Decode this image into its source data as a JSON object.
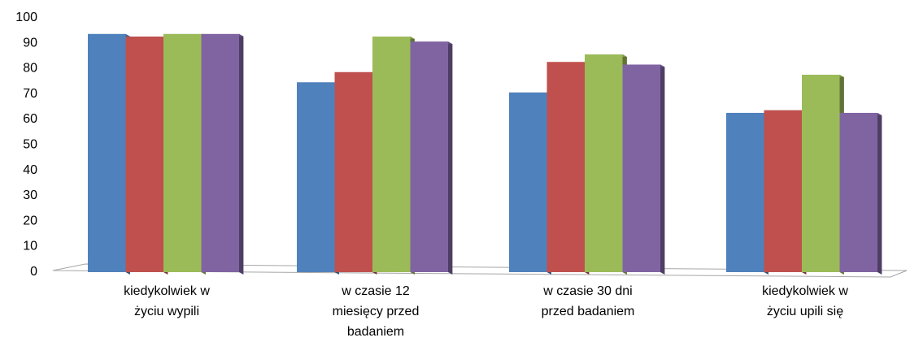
{
  "chart_data": {
    "type": "bar",
    "title": "",
    "xlabel": "",
    "ylabel": "",
    "ylim": [
      0,
      100
    ],
    "yticks": [
      0,
      10,
      20,
      30,
      40,
      50,
      60,
      70,
      80,
      90,
      100
    ],
    "grid": false,
    "legend": "none",
    "style": "3d-columns",
    "categories": [
      [
        "kiedykolwiek w",
        "życiu wypili"
      ],
      [
        "w czasie 12",
        "miesięcy przed",
        "badaniem"
      ],
      [
        "w czasie 30 dni",
        "przed badaniem"
      ],
      [
        "kiedykolwiek w",
        "życiu upili się"
      ]
    ],
    "series": [
      {
        "color": "#4f81bd",
        "values": [
          93,
          74,
          70,
          62
        ]
      },
      {
        "color": "#c0504d",
        "values": [
          92,
          78,
          82,
          63
        ]
      },
      {
        "color": "#9bbb59",
        "values": [
          93,
          92,
          85,
          77
        ]
      },
      {
        "color": "#8064a2",
        "values": [
          93,
          90,
          81,
          62
        ]
      }
    ]
  }
}
